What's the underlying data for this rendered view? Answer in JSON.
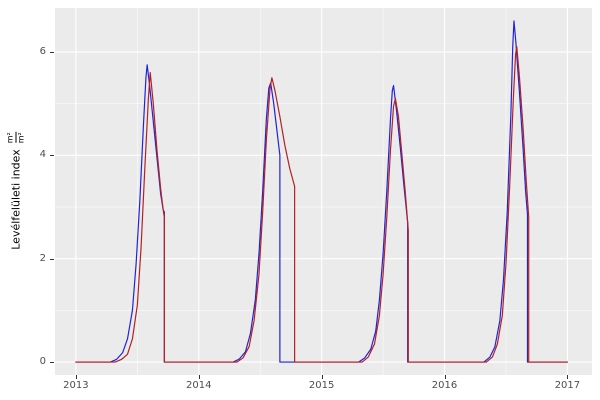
{
  "figure": {
    "background": "#FFFFFF",
    "panel_background": "#EBEBEB",
    "grid_major_color": "#FFFFFF",
    "grid_minor_color": "#FFFFFF",
    "tick_color": "#333333",
    "tick_label_color": "#4D4D4D"
  },
  "y_axis": {
    "label_text": "Levélfelületi index",
    "unit_fraction_numerator": "m²",
    "unit_fraction_denominator": "m²"
  },
  "chart_data": {
    "type": "line",
    "title": "",
    "xlabel": "",
    "ylabel": "Levélfelületi index (m²/m²)",
    "xlim": [
      2012.83,
      2017.2
    ],
    "ylim": [
      -0.25,
      6.85
    ],
    "x_ticks": [
      2013,
      2014,
      2015,
      2016,
      2017
    ],
    "x_tick_labels": [
      "2013",
      "2014",
      "2015",
      "2016",
      "2017"
    ],
    "y_ticks": [
      0,
      2,
      4,
      6
    ],
    "y_tick_labels": [
      "0",
      "2",
      "4",
      "6"
    ],
    "x_minor": [
      2013.5,
      2014.5,
      2015.5,
      2016.5
    ],
    "y_minor": [
      1,
      3,
      5
    ],
    "grid": true,
    "legend": "none",
    "series": [
      {
        "name": "blue-series",
        "color": "#2222DD",
        "points": [
          [
            2013.0,
            0
          ],
          [
            2013.28,
            0
          ],
          [
            2013.33,
            0.05
          ],
          [
            2013.38,
            0.18
          ],
          [
            2013.42,
            0.45
          ],
          [
            2013.46,
            1.0
          ],
          [
            2013.49,
            1.9
          ],
          [
            2013.52,
            3.1
          ],
          [
            2013.55,
            4.6
          ],
          [
            2013.57,
            5.5
          ],
          [
            2013.58,
            5.75
          ],
          [
            2013.6,
            5.35
          ],
          [
            2013.63,
            4.65
          ],
          [
            2013.66,
            3.95
          ],
          [
            2013.69,
            3.25
          ],
          [
            2013.71,
            2.95
          ],
          [
            2013.72,
            2.9
          ],
          [
            2013.72,
            0
          ],
          [
            2014.0,
            0
          ],
          [
            2014.28,
            0
          ],
          [
            2014.33,
            0.06
          ],
          [
            2014.38,
            0.2
          ],
          [
            2014.42,
            0.55
          ],
          [
            2014.46,
            1.2
          ],
          [
            2014.49,
            2.1
          ],
          [
            2014.52,
            3.3
          ],
          [
            2014.55,
            4.7
          ],
          [
            2014.57,
            5.3
          ],
          [
            2014.585,
            5.4
          ],
          [
            2014.61,
            5.0
          ],
          [
            2014.64,
            4.4
          ],
          [
            2014.66,
            4.0
          ],
          [
            2014.66,
            0
          ],
          [
            2015.0,
            0
          ],
          [
            2015.3,
            0
          ],
          [
            2015.35,
            0.08
          ],
          [
            2015.4,
            0.25
          ],
          [
            2015.44,
            0.6
          ],
          [
            2015.47,
            1.2
          ],
          [
            2015.5,
            2.1
          ],
          [
            2015.53,
            3.3
          ],
          [
            2015.56,
            4.7
          ],
          [
            2015.575,
            5.25
          ],
          [
            2015.585,
            5.35
          ],
          [
            2015.61,
            4.85
          ],
          [
            2015.64,
            4.15
          ],
          [
            2015.67,
            3.4
          ],
          [
            2015.7,
            2.7
          ],
          [
            2015.7,
            0
          ],
          [
            2016.0,
            0
          ],
          [
            2016.32,
            0
          ],
          [
            2016.37,
            0.1
          ],
          [
            2016.41,
            0.3
          ],
          [
            2016.45,
            0.8
          ],
          [
            2016.48,
            1.6
          ],
          [
            2016.51,
            2.9
          ],
          [
            2016.54,
            4.8
          ],
          [
            2016.555,
            6.1
          ],
          [
            2016.565,
            6.6
          ],
          [
            2016.58,
            6.2
          ],
          [
            2016.61,
            5.2
          ],
          [
            2016.64,
            4.1
          ],
          [
            2016.66,
            3.3
          ],
          [
            2016.675,
            2.85
          ],
          [
            2016.675,
            0
          ],
          [
            2017.0,
            0
          ]
        ]
      },
      {
        "name": "red-series",
        "color": "#B22222",
        "points": [
          [
            2013.0,
            0
          ],
          [
            2013.32,
            0
          ],
          [
            2013.37,
            0.05
          ],
          [
            2013.42,
            0.15
          ],
          [
            2013.46,
            0.45
          ],
          [
            2013.5,
            1.1
          ],
          [
            2013.53,
            2.2
          ],
          [
            2013.56,
            3.7
          ],
          [
            2013.59,
            5.1
          ],
          [
            2013.605,
            5.6
          ],
          [
            2013.63,
            5.0
          ],
          [
            2013.66,
            4.1
          ],
          [
            2013.69,
            3.35
          ],
          [
            2013.71,
            2.95
          ],
          [
            2013.72,
            2.8
          ],
          [
            2013.72,
            0
          ],
          [
            2014.0,
            0
          ],
          [
            2014.31,
            0
          ],
          [
            2014.36,
            0.08
          ],
          [
            2014.41,
            0.3
          ],
          [
            2014.45,
            0.8
          ],
          [
            2014.49,
            1.7
          ],
          [
            2014.52,
            2.9
          ],
          [
            2014.55,
            4.3
          ],
          [
            2014.58,
            5.3
          ],
          [
            2014.595,
            5.5
          ],
          [
            2014.62,
            5.25
          ],
          [
            2014.66,
            4.75
          ],
          [
            2014.7,
            4.2
          ],
          [
            2014.74,
            3.75
          ],
          [
            2014.78,
            3.4
          ],
          [
            2014.78,
            0
          ],
          [
            2015.0,
            0
          ],
          [
            2015.33,
            0
          ],
          [
            2015.38,
            0.1
          ],
          [
            2015.43,
            0.35
          ],
          [
            2015.47,
            0.9
          ],
          [
            2015.5,
            1.7
          ],
          [
            2015.53,
            2.8
          ],
          [
            2015.56,
            4.1
          ],
          [
            2015.585,
            4.95
          ],
          [
            2015.6,
            5.1
          ],
          [
            2015.625,
            4.75
          ],
          [
            2015.65,
            4.1
          ],
          [
            2015.68,
            3.3
          ],
          [
            2015.705,
            2.55
          ],
          [
            2015.705,
            0
          ],
          [
            2016.0,
            0
          ],
          [
            2016.34,
            0
          ],
          [
            2016.39,
            0.1
          ],
          [
            2016.43,
            0.35
          ],
          [
            2016.47,
            0.9
          ],
          [
            2016.5,
            1.9
          ],
          [
            2016.53,
            3.4
          ],
          [
            2016.56,
            5.1
          ],
          [
            2016.578,
            5.95
          ],
          [
            2016.588,
            6.1
          ],
          [
            2016.61,
            5.5
          ],
          [
            2016.64,
            4.5
          ],
          [
            2016.665,
            3.5
          ],
          [
            2016.685,
            2.8
          ],
          [
            2016.685,
            0
          ],
          [
            2017.0,
            0
          ]
        ]
      }
    ]
  }
}
